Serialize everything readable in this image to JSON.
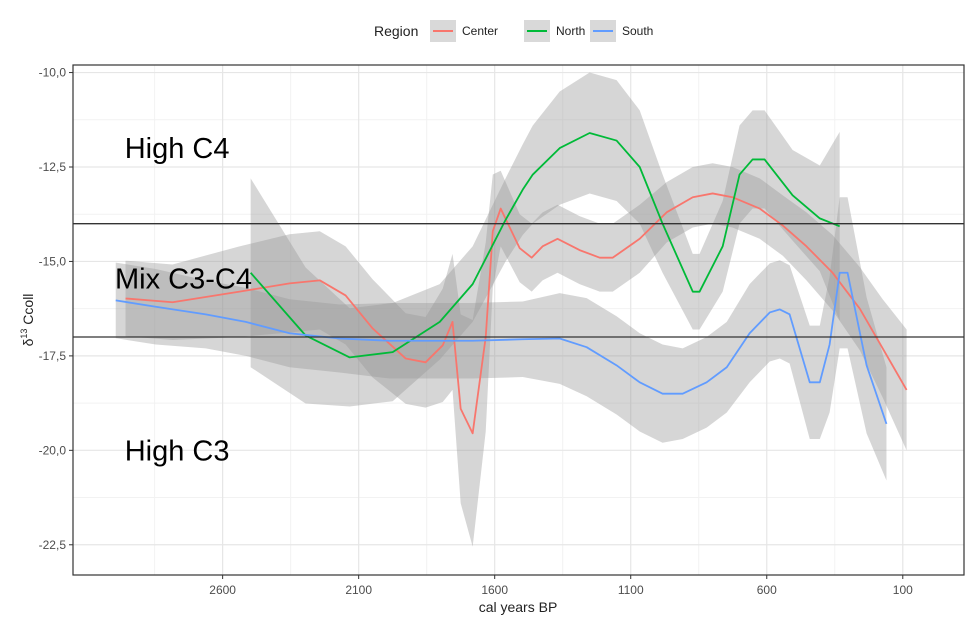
{
  "chart_data": {
    "type": "line",
    "title": "",
    "xlabel": "cal years BP",
    "ylabel": "δ¹³ Ccoll",
    "ylabel_parts": {
      "delta": "δ",
      "sup": "13",
      "rest": " Ccoll"
    },
    "x_reversed": true,
    "xlim": [
      3150,
      -125
    ],
    "ylim": [
      -9.8,
      -23.3
    ],
    "x_ticks": [
      2600,
      2100,
      1600,
      1100,
      600,
      100
    ],
    "x_tick_labels": [
      "2600",
      "2100",
      "1600",
      "1100",
      "600",
      "100"
    ],
    "y_ticks": [
      -10,
      -12.5,
      -15,
      -17.5,
      -20,
      -22.5
    ],
    "y_tick_labels": [
      "-10,0",
      "-12,5",
      "-15,0",
      "-17,5",
      "-20,0",
      "-22,5"
    ],
    "grid": true,
    "legend": {
      "title": "Region",
      "position": "top",
      "entries": [
        "Center",
        "North",
        "South"
      ]
    },
    "hlines": [
      -14,
      -17
    ],
    "annotations": [
      {
        "text": "High C4",
        "x": 2960,
        "y": -12.0
      },
      {
        "text": "Mix C3-C4",
        "x": 3000,
        "y": -15.45
      },
      {
        "text": "High C3",
        "x": 2960,
        "y": -20.0
      }
    ],
    "series": [
      {
        "name": "Center",
        "color": "#F8766D",
        "x": [
          2957,
          2784,
          2538,
          2354,
          2243,
          2148,
          2049,
          1927,
          1854,
          1791,
          1755,
          1725,
          1681,
          1633,
          1607,
          1578,
          1508,
          1464,
          1424,
          1369,
          1288,
          1214,
          1166,
          1067,
          968,
          872,
          799,
          726,
          626,
          541,
          454,
          358,
          258,
          174,
          86
        ],
        "y": [
          -15.98,
          -16.08,
          -15.8,
          -15.58,
          -15.5,
          -15.9,
          -16.77,
          -17.57,
          -17.67,
          -17.22,
          -16.6,
          -18.9,
          -19.55,
          -17.0,
          -14.2,
          -13.6,
          -14.65,
          -14.9,
          -14.6,
          -14.4,
          -14.7,
          -14.9,
          -14.9,
          -14.4,
          -13.7,
          -13.3,
          -13.2,
          -13.3,
          -13.6,
          -14.05,
          -14.6,
          -15.3,
          -16.25,
          -17.3,
          -18.4
        ],
        "ci_halfwidth": [
          1.0,
          1.0,
          1.2,
          1.3,
          1.3,
          1.3,
          1.3,
          1.2,
          1.2,
          1.5,
          1.8,
          2.5,
          3.0,
          2.5,
          1.5,
          1.0,
          0.9,
          0.9,
          0.9,
          0.9,
          0.9,
          0.9,
          0.9,
          0.9,
          0.8,
          0.8,
          0.8,
          0.8,
          0.8,
          0.8,
          0.9,
          1.0,
          1.1,
          1.3,
          1.6
        ]
      },
      {
        "name": "North",
        "color": "#00BA38",
        "x": [
          2497,
          2295,
          2133,
          1975,
          1802,
          1681,
          1560,
          1497,
          1460,
          1361,
          1251,
          1152,
          1067,
          983,
          872,
          847,
          762,
          700,
          652,
          608,
          505,
          405,
          332
        ],
        "y": [
          -15.3,
          -16.96,
          -17.54,
          -17.4,
          -16.6,
          -15.6,
          -13.9,
          -13.1,
          -12.7,
          -12.0,
          -11.6,
          -11.8,
          -12.5,
          -14.0,
          -15.8,
          -15.8,
          -14.6,
          -12.7,
          -12.3,
          -12.3,
          -13.25,
          -13.86,
          -14.07
        ],
        "ci_halfwidth": [
          2.5,
          1.8,
          1.3,
          1.3,
          1.0,
          1.0,
          1.1,
          1.2,
          1.3,
          1.5,
          1.6,
          1.6,
          1.5,
          1.3,
          1.0,
          1.0,
          1.2,
          1.3,
          1.3,
          1.3,
          1.2,
          1.4,
          2.5
        ]
      },
      {
        "name": "South",
        "color": "#619CFF",
        "x": [
          2993,
          2846,
          2662,
          2515,
          2354,
          2170,
          1986,
          1681,
          1497,
          1361,
          1262,
          1152,
          1067,
          983,
          909,
          821,
          747,
          663,
          589,
          552,
          516,
          442,
          405,
          369,
          332,
          303,
          233,
          160
        ],
        "y": [
          -16.03,
          -16.2,
          -16.4,
          -16.6,
          -16.9,
          -17.04,
          -17.1,
          -17.1,
          -17.06,
          -17.04,
          -17.27,
          -17.75,
          -18.2,
          -18.5,
          -18.5,
          -18.2,
          -17.8,
          -16.9,
          -16.35,
          -16.27,
          -16.4,
          -18.2,
          -18.2,
          -17.2,
          -15.3,
          -15.3,
          -17.75,
          -19.3
        ],
        "ci_halfwidth": [
          1.0,
          1.0,
          0.9,
          0.9,
          0.9,
          0.9,
          1.0,
          1.0,
          1.0,
          1.2,
          1.3,
          1.3,
          1.3,
          1.3,
          1.2,
          1.2,
          1.2,
          1.3,
          1.3,
          1.3,
          1.3,
          1.5,
          1.5,
          1.8,
          2.0,
          2.0,
          1.8,
          1.5
        ]
      }
    ]
  }
}
